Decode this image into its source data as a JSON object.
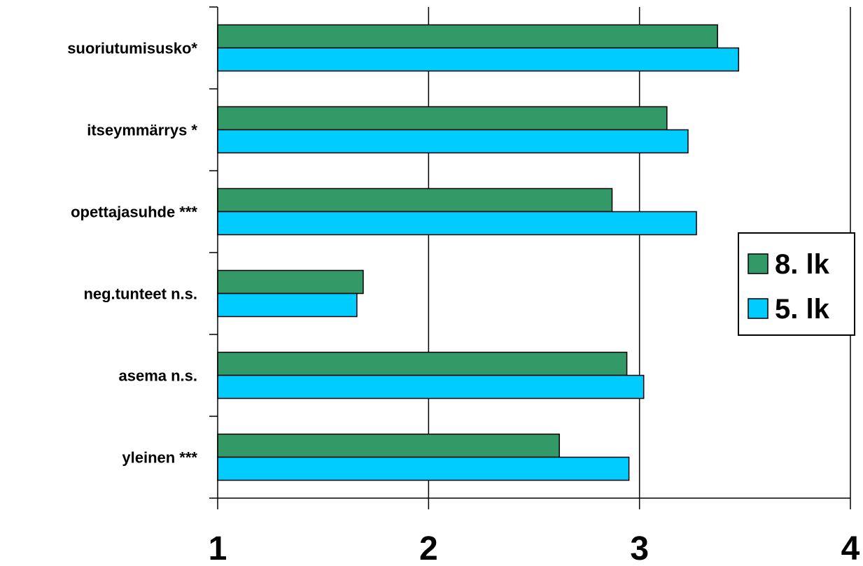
{
  "chart_data": {
    "type": "bar",
    "orientation": "horizontal",
    "categories": [
      "suoriutumisusko*",
      "itseymmärrys *",
      "opettajasuhde ***",
      "neg.tunteet n.s.",
      "asema n.s.",
      "yleinen ***"
    ],
    "series": [
      {
        "name": "8. lk",
        "color": "#339966",
        "values": [
          3.37,
          3.13,
          2.87,
          1.69,
          2.94,
          2.62
        ]
      },
      {
        "name": "5. lk",
        "color": "#00ccff",
        "values": [
          3.47,
          3.23,
          3.27,
          1.66,
          3.02,
          2.95
        ]
      }
    ],
    "xlim": [
      1,
      4
    ],
    "xticks": [
      "1",
      "2",
      "3",
      "4"
    ],
    "grid": true,
    "legend": "right",
    "title": "",
    "xlabel": "",
    "ylabel": ""
  }
}
